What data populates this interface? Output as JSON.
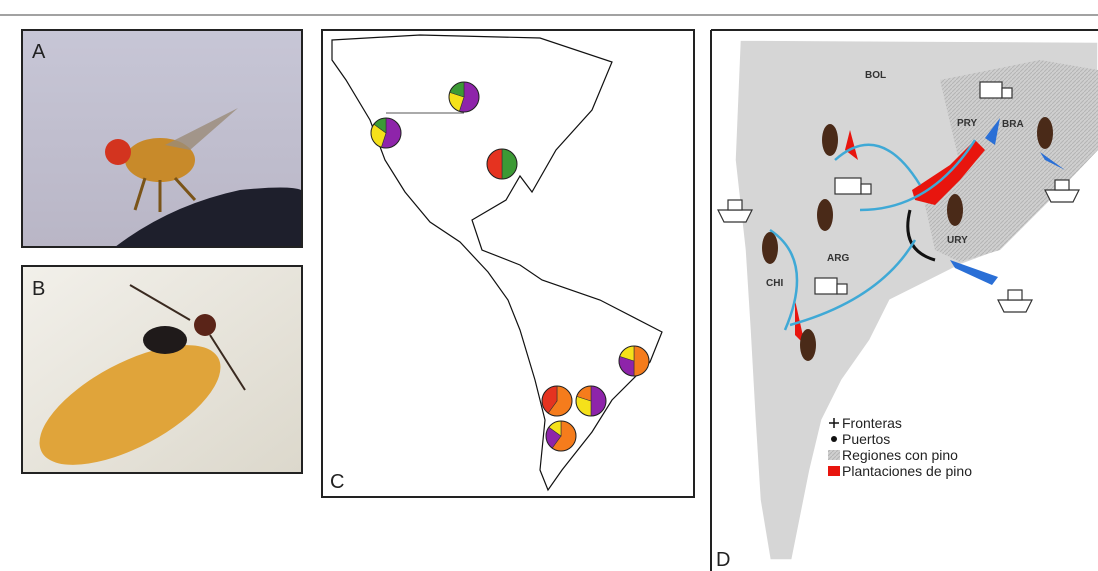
{
  "panels": {
    "a": {
      "label": "A"
    },
    "b": {
      "label": "B"
    },
    "c": {
      "label": "C",
      "pies": [
        {
          "colors": [
            "#8e24aa",
            "#f5e11a",
            "#3c9a35"
          ],
          "values": [
            55,
            25,
            20
          ]
        },
        {
          "colors": [
            "#8e24aa",
            "#f5e11a",
            "#3c9a35"
          ],
          "values": [
            55,
            30,
            15
          ]
        },
        {
          "colors": [
            "#3c9a35",
            "#e53320"
          ],
          "values": [
            50,
            50
          ]
        },
        {
          "colors": [
            "#f57c1c",
            "#8e24aa",
            "#f5e11a"
          ],
          "values": [
            50,
            30,
            20
          ]
        },
        {
          "colors": [
            "#8e24aa",
            "#f5e11a",
            "#f57c1c"
          ],
          "values": [
            50,
            30,
            20
          ]
        },
        {
          "colors": [
            "#f57c1c",
            "#e53320"
          ],
          "values": [
            60,
            40
          ]
        },
        {
          "colors": [
            "#f57c1c",
            "#8e24aa",
            "#f5e11a"
          ],
          "values": [
            60,
            25,
            15
          ]
        }
      ]
    },
    "d": {
      "label": "D",
      "countries": [
        "BOL",
        "PRY",
        "BRA",
        "URY",
        "ARG",
        "CHI"
      ],
      "legend": [
        "Fronteras",
        "Puertos",
        "Regiones con pino",
        "Plantaciones de pino"
      ]
    }
  }
}
